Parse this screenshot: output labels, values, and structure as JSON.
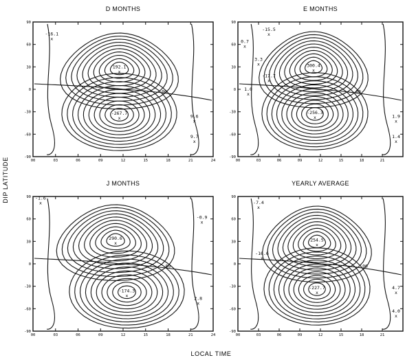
{
  "figure": {
    "xlabel": "LOCAL TIME",
    "ylabel": "DIP LATITUDE",
    "line_color": "#111111",
    "background": "#ffffff"
  },
  "chart_data": [
    {
      "type": "contour",
      "title": "D MONTHS",
      "xlim": [
        0,
        24
      ],
      "ylim": [
        -90,
        90
      ],
      "xticks": [
        "00",
        "03",
        "06",
        "09",
        "12",
        "15",
        "18",
        "21",
        "24"
      ],
      "yticks": [
        "90",
        "60",
        "30",
        "0",
        "-30",
        "-60",
        "-90"
      ],
      "centers": {
        "north": {
          "x": 11.5,
          "y": 28
        },
        "south": {
          "x": 11.5,
          "y": -34
        }
      },
      "annotations": [
        {
          "text": "-16.1",
          "x": 2.5,
          "y": 72
        },
        {
          "text": "192.1",
          "x": 11.5,
          "y": 28
        },
        {
          "text": "-267.7",
          "x": 11.5,
          "y": -34
        },
        {
          "text": "00",
          "x": 17.5,
          "y": -5
        },
        {
          "text": "9.6",
          "x": 21.5,
          "y": -38
        },
        {
          "text": "9.7",
          "x": 21.5,
          "y": -65
        }
      ]
    },
    {
      "type": "contour",
      "title": "E MONTHS",
      "xlim": [
        0,
        24
      ],
      "ylim": [
        -90,
        90
      ],
      "xticks": [
        "00",
        "03",
        "06",
        "09",
        "12",
        "15",
        "18",
        "21",
        ""
      ],
      "yticks": [
        "90",
        "60",
        "30",
        "0",
        "-30",
        "-60",
        "-90"
      ],
      "centers": {
        "north": {
          "x": 11.0,
          "y": 30
        },
        "south": {
          "x": 11.2,
          "y": -33
        }
      },
      "annotations": [
        {
          "text": "-15.5",
          "x": 4.5,
          "y": 78
        },
        {
          "text": "0.7",
          "x": 1.0,
          "y": 62
        },
        {
          "text": "3.3",
          "x": 3.0,
          "y": 38
        },
        {
          "text": "-17.7",
          "x": 4.5,
          "y": 16
        },
        {
          "text": "1.0",
          "x": 1.5,
          "y": -2
        },
        {
          "text": "300.4",
          "x": 11.0,
          "y": 30
        },
        {
          "text": "-256.3",
          "x": 11.2,
          "y": -33
        },
        {
          "text": "00",
          "x": 17.5,
          "y": -5
        },
        {
          "text": "1.9",
          "x": 23.0,
          "y": -38
        },
        {
          "text": "1.4",
          "x": 23.0,
          "y": -65
        }
      ]
    },
    {
      "type": "contour",
      "title": "J MONTHS",
      "xlim": [
        0,
        24
      ],
      "ylim": [
        -90,
        90
      ],
      "xticks": [
        "00",
        "03",
        "06",
        "09",
        "12",
        "15",
        "18",
        "21",
        "24"
      ],
      "yticks": [
        "90",
        "60",
        "30",
        "0",
        "-30",
        "-60",
        "-90"
      ],
      "centers": {
        "north": {
          "x": 11.0,
          "y": 32
        },
        "south": {
          "x": 12.5,
          "y": -38
        }
      },
      "annotations": [
        {
          "text": "-1.6",
          "x": 1.0,
          "y": 86
        },
        {
          "text": "290.6",
          "x": 11.0,
          "y": 32
        },
        {
          "text": "-0.9",
          "x": 22.5,
          "y": 60
        },
        {
          "text": "00",
          "x": 18.0,
          "y": -5
        },
        {
          "text": "-174.3",
          "x": 12.5,
          "y": -38
        },
        {
          "text": "2.8",
          "x": 22.0,
          "y": -48
        }
      ]
    },
    {
      "type": "contour",
      "title": "YEARLY AVERAGE",
      "xlim": [
        0,
        24
      ],
      "ylim": [
        -90,
        90
      ],
      "xticks": [
        "00",
        "03",
        "06",
        "09",
        "12",
        "15",
        "18",
        "21",
        ""
      ],
      "yticks": [
        "90",
        "60",
        "30",
        "0",
        "-30",
        "-60",
        "-90"
      ],
      "centers": {
        "north": {
          "x": 11.5,
          "y": 30
        },
        "south": {
          "x": 11.5,
          "y": -34
        }
      },
      "annotations": [
        {
          "text": "-7.4",
          "x": 3.0,
          "y": 80
        },
        {
          "text": "-16.6",
          "x": 3.5,
          "y": 12
        },
        {
          "text": "254.5",
          "x": 11.5,
          "y": 30
        },
        {
          "text": "00",
          "x": 18.5,
          "y": -5
        },
        {
          "text": "-227.7",
          "x": 11.5,
          "y": -34
        },
        {
          "text": "4.7",
          "x": 23.0,
          "y": -34
        },
        {
          "text": "4.0",
          "x": 23.0,
          "y": -65
        }
      ]
    }
  ]
}
